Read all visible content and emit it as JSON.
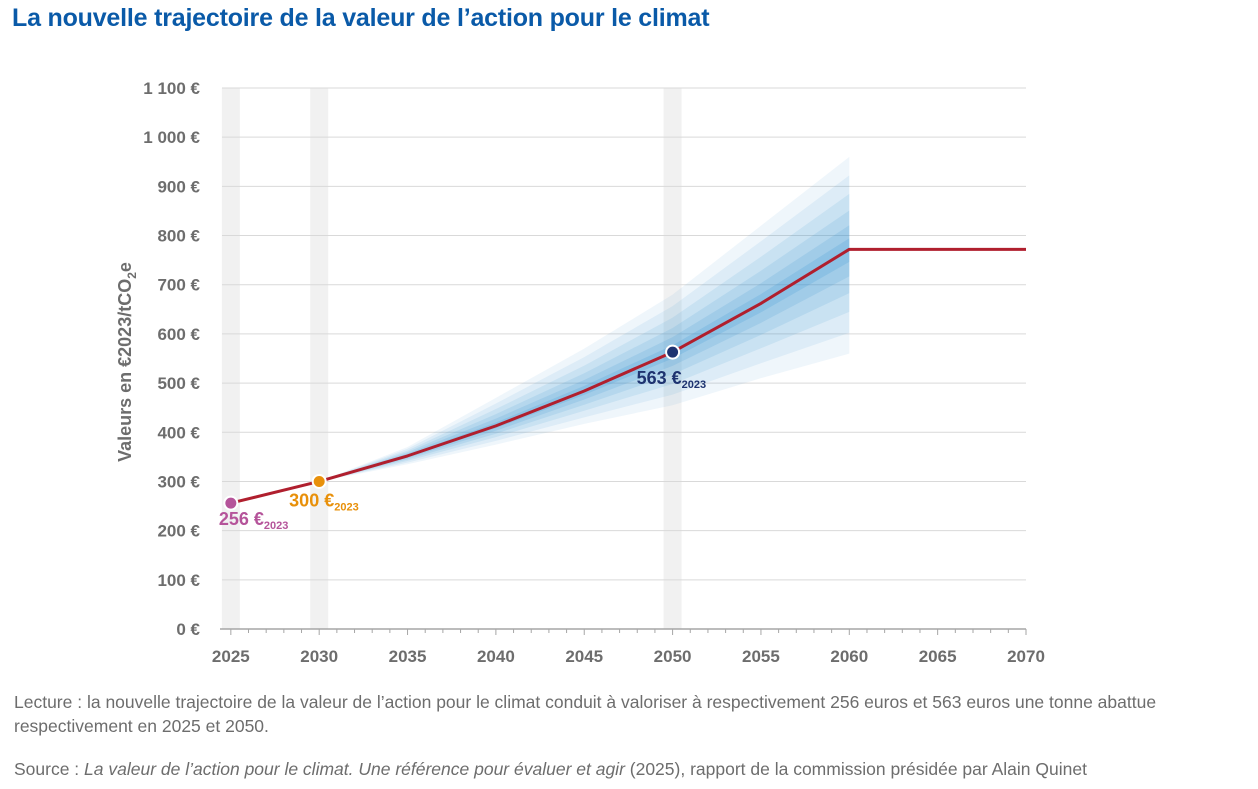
{
  "title": "La nouvelle trajectoire de la valeur de l’action pour le climat",
  "lecture": "Lecture : la nouvelle trajectoire de la valeur de l’action pour le climat conduit à valoriser à respectivement 256 euros et 563 euros une tonne abattue respectivement en 2025 et 2050.",
  "source": {
    "prefix": "Source : ",
    "title_italic": "La valeur de l’action pour le climat. Une référence pour évaluer et agir",
    "suffix": " (2025), rapport de la commission présidée par Alain Quinet"
  },
  "chart_data": {
    "type": "line",
    "ylabel": "Valeurs en €2023/tCO",
    "ylabel_sub": "2",
    "ylabel_end": "e",
    "xlim": [
      2024.5,
      2070
    ],
    "ylim": [
      0,
      1100
    ],
    "x_ticks": [
      2025,
      2030,
      2035,
      2040,
      2045,
      2050,
      2055,
      2060,
      2065,
      2070
    ],
    "y_ticks": [
      0,
      100,
      200,
      300,
      400,
      500,
      600,
      700,
      800,
      900,
      1000,
      1100
    ],
    "y_tick_labels": [
      "0 €",
      "100 €",
      "200 €",
      "300 €",
      "400 €",
      "500 €",
      "600 €",
      "700 €",
      "800 €",
      "900 €",
      "1 000 €",
      "1 100 €"
    ],
    "grid": true,
    "highlight_years": [
      2025,
      2030,
      2050
    ],
    "series": [
      {
        "color": "#b01f2e",
        "x": [
          2025,
          2030,
          2035,
          2040,
          2045,
          2050,
          2055,
          2060,
          2070
        ],
        "y": [
          256,
          300,
          352,
          413,
          484,
          563,
          662,
          772,
          772
        ]
      }
    ],
    "uncertainty_band": {
      "color": "#2f8fd0",
      "x": [
        2030,
        2035,
        2040,
        2045,
        2050,
        2055,
        2060
      ],
      "low": [
        300,
        335,
        375,
        417,
        455,
        510,
        560
      ],
      "high": [
        300,
        370,
        470,
        570,
        680,
        820,
        960
      ]
    },
    "annotations": [
      {
        "x": 2025,
        "y": 256,
        "value": "256 €",
        "sub": "2023",
        "color": "#b5549a"
      },
      {
        "x": 2030,
        "y": 300,
        "value": "300 €",
        "sub": "2023",
        "color": "#e8900a"
      },
      {
        "x": 2050,
        "y": 563,
        "value": "563 €",
        "sub": "2023",
        "color": "#1e3370"
      }
    ]
  }
}
